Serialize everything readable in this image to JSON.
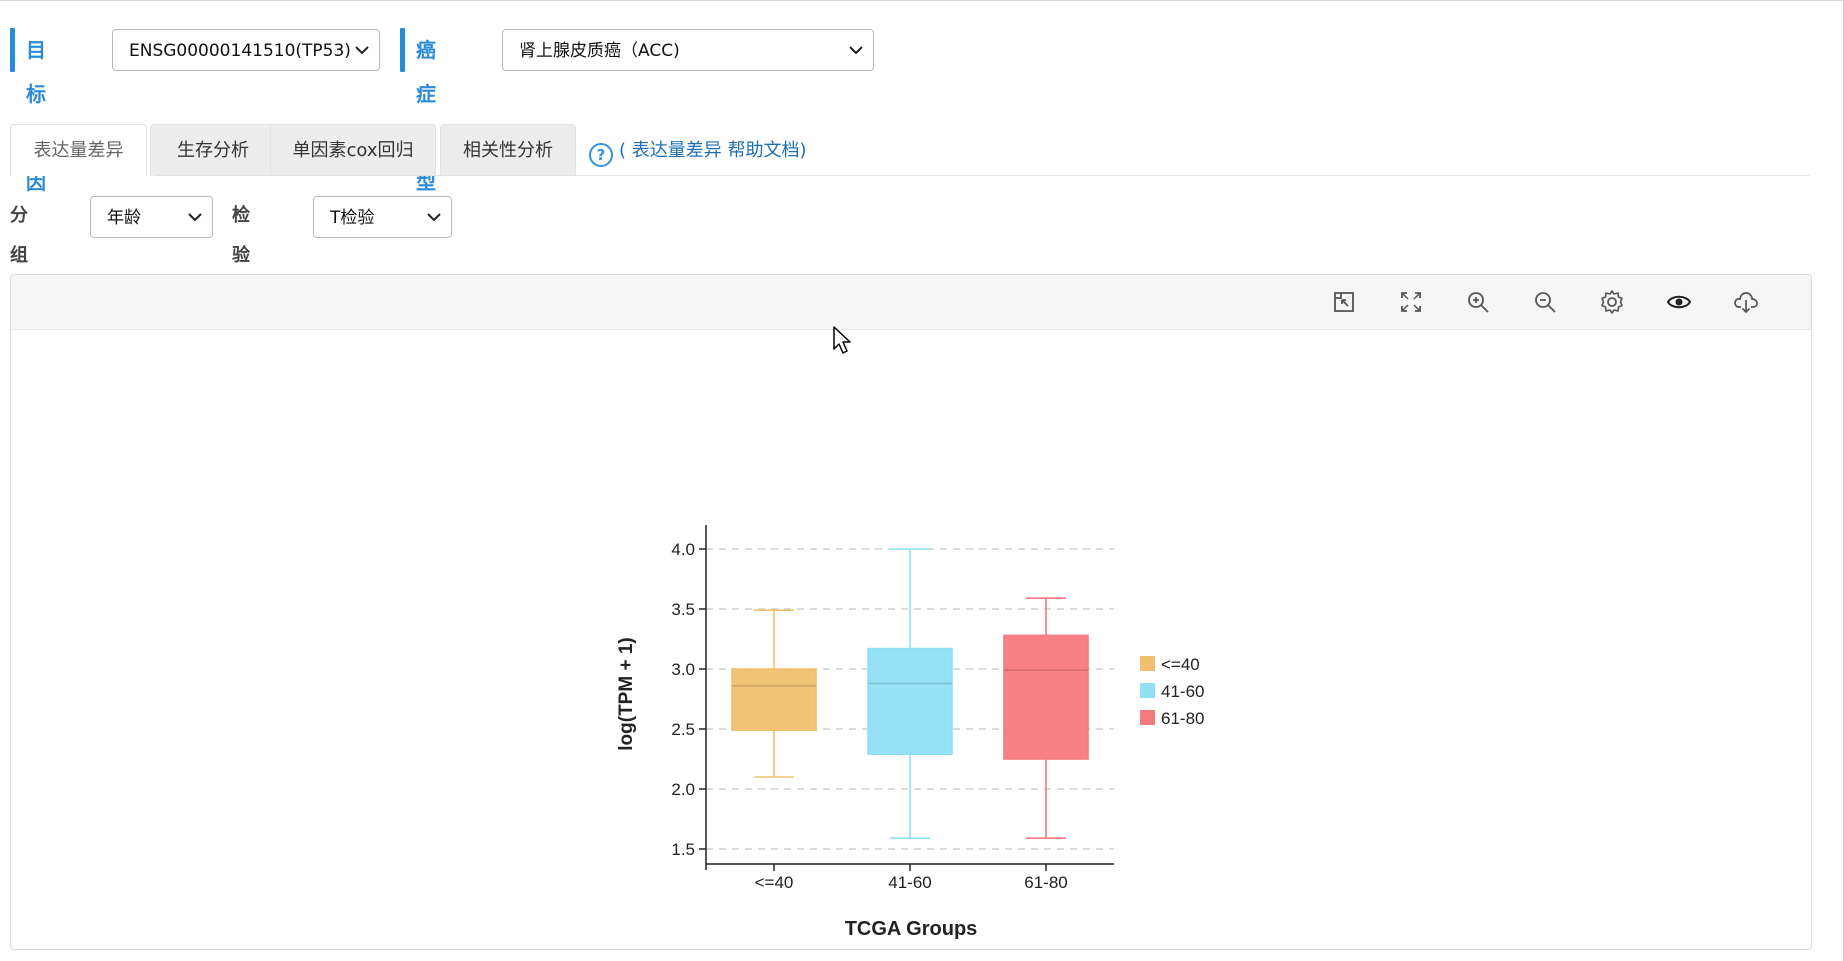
{
  "gene_selector": {
    "label": "目标基因",
    "value": "ENSG00000141510(TP53)"
  },
  "cancer_selector": {
    "label": "癌症类型",
    "value": "肾上腺皮质癌（ACC)"
  },
  "tabs": [
    {
      "label": "表达量差异",
      "active": true
    },
    {
      "label": "生存分析"
    },
    {
      "label": "单因素cox回归"
    },
    {
      "label": "相关性分析"
    }
  ],
  "help_link": {
    "icon": "question-circle-icon",
    "text": "( 表达量差异 帮助文档)"
  },
  "filters": {
    "group": {
      "label": "分组选择",
      "value": "年龄"
    },
    "test": {
      "label": "检验方法",
      "value": "T检验"
    }
  },
  "toolbar_icons": [
    "restore-icon",
    "fullscreen-icon",
    "zoom-in-icon",
    "zoom-out-icon",
    "settings-icon",
    "view-icon",
    "download-icon"
  ],
  "colors": {
    "accent": "#2b8bd8",
    "link": "#1f6fb5"
  },
  "chart_data": {
    "type": "box",
    "title": "",
    "xlabel": "TCGA Groups",
    "ylabel": "log(TPM + 1)",
    "ylim": [
      1.5,
      4.0
    ],
    "yticks": [
      "1.5",
      "2.0",
      "2.5",
      "3.0",
      "3.5",
      "4.0"
    ],
    "grid": "horizontal-dashed",
    "legend": "right",
    "categories": [
      "<=40",
      "41-60",
      "61-80"
    ],
    "series": [
      {
        "name": "<=40",
        "color": "#f0c06e",
        "min": 2.1,
        "q1": 2.49,
        "median": 2.86,
        "q3": 3.0,
        "max": 3.49
      },
      {
        "name": "41-60",
        "color": "#8fdff5",
        "min": 1.59,
        "q1": 2.29,
        "median": 2.88,
        "q3": 3.17,
        "max": 4.0
      },
      {
        "name": "61-80",
        "color": "#f47a7e",
        "min": 1.59,
        "q1": 2.25,
        "median": 2.99,
        "q3": 3.28,
        "max": 3.59
      }
    ]
  }
}
